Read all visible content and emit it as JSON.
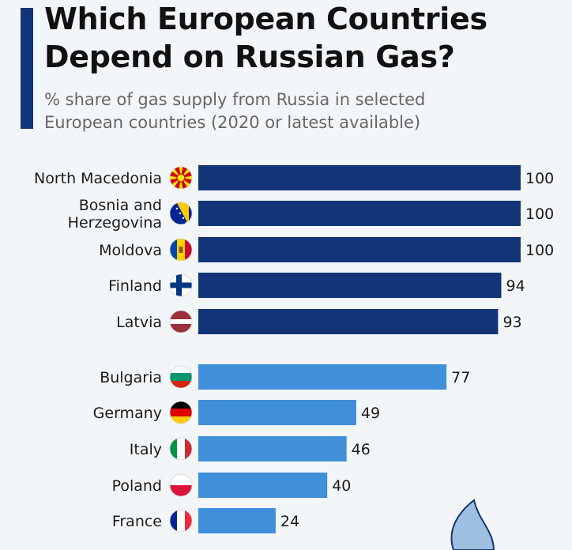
{
  "header": {
    "title": "Which European Countries Depend on Russian Gas?",
    "subtitle": "% share of gas supply from Russia in selected European countries (2020 or latest available)"
  },
  "colors": {
    "accent": "#133578",
    "bar_dark": "#133578",
    "bar_light": "#3f8fdb",
    "background": "#f3f6f9",
    "text": "#1b1b1b",
    "subtitle": "#676767"
  },
  "chart_data": {
    "type": "bar",
    "orientation": "horizontal",
    "title": "Which European Countries Depend on Russian Gas?",
    "subtitle": "% share of gas supply from Russia in selected European countries (2020 or latest available)",
    "xlim": [
      0,
      100
    ],
    "grid": false,
    "legend": "none",
    "categories": [
      [
        "North Macedonia"
      ],
      [
        "Bosnia and",
        "Herzegovina"
      ],
      [
        "Moldova"
      ],
      [
        "Finland"
      ],
      [
        "Latvia"
      ],
      [
        "Bulgaria"
      ],
      [
        "Germany"
      ],
      [
        "Italy"
      ],
      [
        "Poland"
      ],
      [
        "France"
      ]
    ],
    "values": [
      100,
      100,
      100,
      94,
      93,
      77,
      49,
      46,
      40,
      24
    ],
    "groups": [
      "high",
      "high",
      "high",
      "high",
      "high",
      "low",
      "low",
      "low",
      "low",
      "low"
    ],
    "flag_icons": [
      "north-macedonia-flag-icon",
      "bosnia-herzegovina-flag-icon",
      "moldova-flag-icon",
      "finland-flag-icon",
      "latvia-flag-icon",
      "bulgaria-flag-icon",
      "germany-flag-icon",
      "italy-flag-icon",
      "poland-flag-icon",
      "france-flag-icon"
    ]
  }
}
